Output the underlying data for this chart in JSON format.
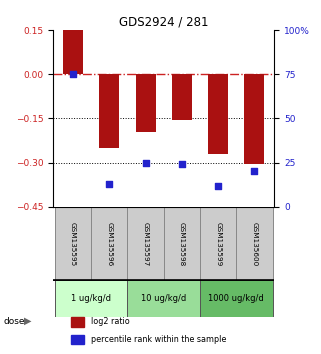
{
  "title": "GDS2924 / 281",
  "samples": [
    "GSM135595",
    "GSM135596",
    "GSM135597",
    "GSM135598",
    "GSM135599",
    "GSM135600"
  ],
  "log2_ratio": [
    0.15,
    -0.25,
    -0.195,
    -0.155,
    -0.27,
    -0.305
  ],
  "percentile_rank": [
    75,
    13,
    25,
    24,
    12,
    20
  ],
  "ylim_left": [
    -0.45,
    0.15
  ],
  "ylim_right": [
    0,
    100
  ],
  "yticks_left": [
    0.15,
    0,
    -0.15,
    -0.3,
    -0.45
  ],
  "yticks_right": [
    100,
    75,
    50,
    25,
    0
  ],
  "bar_color": "#aa1111",
  "dot_color": "#2222cc",
  "hline_color": "#cc2222",
  "dot_size": 25,
  "bar_width": 0.55,
  "dose_groups": [
    {
      "label": "1 ug/kg/d",
      "cols": [
        0,
        1
      ],
      "color": "#ccffcc"
    },
    {
      "label": "10 ug/kg/d",
      "cols": [
        2,
        3
      ],
      "color": "#99dd99"
    },
    {
      "label": "1000 ug/kg/d",
      "cols": [
        4,
        5
      ],
      "color": "#66bb66"
    }
  ],
  "legend_items": [
    {
      "label": "log2 ratio",
      "color": "#aa1111"
    },
    {
      "label": "percentile rank within the sample",
      "color": "#2222cc"
    }
  ]
}
